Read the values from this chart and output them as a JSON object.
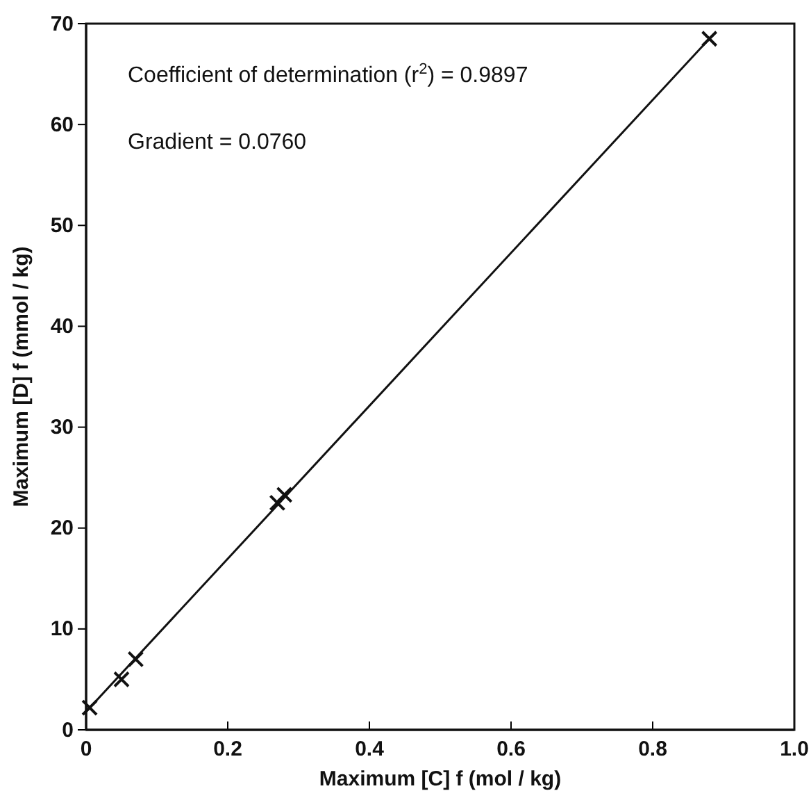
{
  "chart_data": {
    "type": "scatter",
    "xlabel": "Maximum [C] f (mol / kg)",
    "ylabel": "Maximum [D] f (mmol / kg)",
    "annotations": [
      "Coefficient of determination (r$^{2}$) = 0.9897",
      "Gradient = 0.0760"
    ],
    "xlim": [
      0,
      1.0
    ],
    "ylim": [
      0,
      70
    ],
    "xticks": [
      0,
      0.2,
      0.4,
      0.6,
      0.8,
      {
        "value": 1,
        "label": "1.0"
      }
    ],
    "yticks": [
      0,
      10,
      20,
      30,
      40,
      50,
      60,
      70
    ],
    "grid": false,
    "marker": "cross",
    "series": [
      {
        "color": "#111111",
        "x": [
          0.005,
          0.05,
          0.07,
          0.27,
          0.28,
          0.88
        ],
        "values": [
          2.2,
          5,
          7,
          22.5,
          23.3,
          68.5
        ]
      },
      {
        "type": "line",
        "color": "#111111",
        "line_style": "solid",
        "marker": "none",
        "x": [
          0,
          0.88
        ],
        "values": [
          1.8,
          68.5
        ]
      }
    ]
  }
}
